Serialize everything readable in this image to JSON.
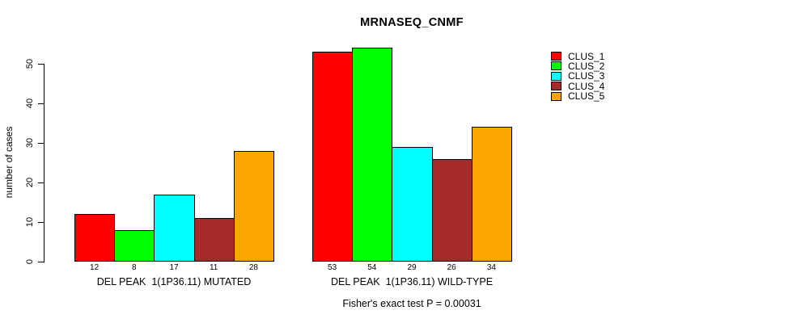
{
  "chart_data": {
    "type": "bar",
    "title": "MRNASEQ_CNMF",
    "ylabel": "number of cases",
    "subtitle": "Fisher's exact test P = 0.00031",
    "ylim": [
      0,
      50
    ],
    "yticks": [
      0,
      10,
      20,
      30,
      40,
      50
    ],
    "grid": false,
    "legend_position": "top-right",
    "categories": [
      "DEL PEAK  1(1P36.11) MUTATED",
      "DEL PEAK  1(1P36.11) WILD-TYPE"
    ],
    "series": [
      {
        "name": "CLUS_1",
        "color": "#FF0000",
        "values": [
          12,
          53
        ]
      },
      {
        "name": "CLUS_2",
        "color": "#00FF00",
        "values": [
          8,
          54
        ]
      },
      {
        "name": "CLUS_3",
        "color": "#00FFFF",
        "values": [
          17,
          29
        ]
      },
      {
        "name": "CLUS_4",
        "color": "#A52A2A",
        "values": [
          11,
          26
        ]
      },
      {
        "name": "CLUS_5",
        "color": "#FFA500",
        "values": [
          28,
          34
        ]
      }
    ]
  }
}
